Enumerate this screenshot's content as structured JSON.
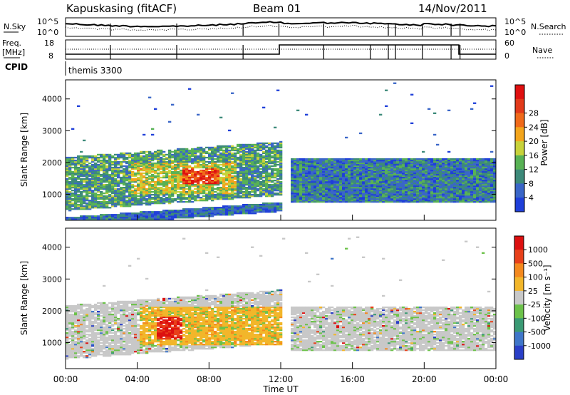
{
  "header": {
    "station": "Kapuskasing (fitACF)",
    "beam": "Beam 01",
    "date": "14/Nov/2011"
  },
  "panels": {
    "nsky": {
      "left_label": "N.Sky",
      "tick_top": "10^5",
      "tick_bottom": "10^0",
      "right_label": "N.Search",
      "right_tick_top": "10^5",
      "right_tick_bottom": "10^0"
    },
    "freq": {
      "left_label_1": "Freq.",
      "left_label_2": "[MHz]",
      "tick_top": "18",
      "tick_bottom": "8",
      "right_label": "Nave",
      "right_tick_top": "60",
      "right_tick_bottom": "0"
    },
    "cpid": {
      "label": "CPID",
      "value": "themis 3300"
    }
  },
  "chart_data": [
    {
      "type": "heatmap",
      "name": "power",
      "ylabel": "Slant Range [km]",
      "xlabel": "Time UT",
      "y_ticks": [
        1000,
        2000,
        3000,
        4000
      ],
      "ylim": [
        180,
        4600
      ],
      "xlim_hours": [
        0,
        24
      ],
      "colorbar": {
        "label": "Power [dB]",
        "ticks": [
          "4",
          "8",
          "12",
          "16",
          "20",
          "24",
          "28"
        ],
        "colors": [
          "#1f3fd9",
          "#3a66c8",
          "#3d8a7a",
          "#58b255",
          "#c8d23a",
          "#f3a51c",
          "#f06a1a",
          "#e23a1a",
          "#e01010"
        ]
      },
      "regions": [
        {
          "t0": 0.0,
          "t1": 12.0,
          "r0": 700,
          "r1": 2400,
          "level": 0.35
        },
        {
          "t0": 3.5,
          "t1": 9.5,
          "r0": 1000,
          "r1": 2000,
          "level": 0.55
        },
        {
          "t0": 6.5,
          "t1": 8.5,
          "r0": 1300,
          "r1": 1800,
          "level": 0.9
        },
        {
          "t0": 0.0,
          "t1": 12.0,
          "r0": 200,
          "r1": 500,
          "level": 0.2
        },
        {
          "t0": 12.5,
          "t1": 24.0,
          "r0": 700,
          "r1": 2100,
          "level": 0.25
        }
      ]
    },
    {
      "type": "heatmap",
      "name": "velocity",
      "ylabel": "Slant Range [km]",
      "xlabel": "Time UT",
      "y_ticks": [
        1000,
        2000,
        3000,
        4000
      ],
      "colorbar": {
        "label": "Velocity [m s⁻¹]",
        "ticks": [
          "1000",
          "500",
          "100",
          "25",
          "-25",
          "-100",
          "-500",
          "-1000"
        ],
        "colors": [
          "#2a3fc7",
          "#3f76c9",
          "#3a9a74",
          "#6cc24a",
          "#c8c8c8",
          "#f2b62a",
          "#f4891e",
          "#e8401a",
          "#dc1010"
        ]
      },
      "regions": [
        {
          "t0": 0.0,
          "t1": 12.0,
          "r0": 700,
          "r1": 2400,
          "level": 0.5
        },
        {
          "t0": 4.0,
          "t1": 12.0,
          "r0": 900,
          "r1": 2100,
          "level": 0.75
        },
        {
          "t0": 5.0,
          "t1": 6.5,
          "r0": 1100,
          "r1": 1800,
          "level": 0.85
        },
        {
          "t0": 12.5,
          "t1": 24.0,
          "r0": 700,
          "r1": 2100,
          "level": 0.5
        }
      ]
    }
  ],
  "x_axis": {
    "ticks": [
      "00:00",
      "04:00",
      "08:00",
      "12:00",
      "16:00",
      "20:00",
      "00:00"
    ],
    "label": "Time UT"
  },
  "colors": {
    "frame": "#000000",
    "ink": "#000000",
    "background": "#ffffff"
  }
}
